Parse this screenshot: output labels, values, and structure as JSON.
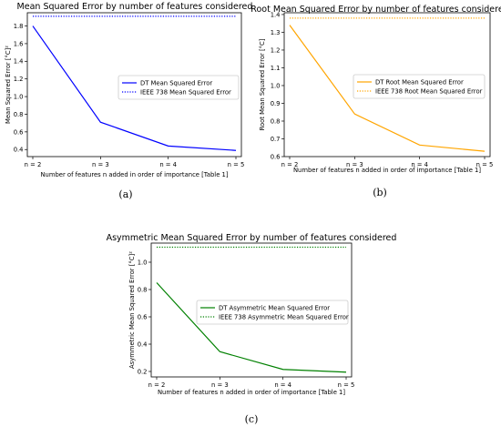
{
  "chart_data": [
    {
      "type": "line",
      "title": "Mean Squared Error by number of features considered",
      "xlabel": "Number of features n added in order of importance [Table 1]",
      "ylabel": "Mean Squared Error [°C]²",
      "categories": [
        "n = 2",
        "n = 3",
        "n = 4",
        "n = 5"
      ],
      "ylim": [
        0.32,
        1.95
      ],
      "yticks": [
        0.4,
        0.6,
        0.8,
        1.0,
        1.2,
        1.4,
        1.6,
        1.8
      ],
      "ytick_labels": [
        "0.4",
        "0.6",
        "0.8",
        "1.0",
        "1.2",
        "1.4",
        "1.6",
        "1.8"
      ],
      "legend_position": "center-right",
      "caption": "(a)",
      "series": [
        {
          "name": "DT Mean Squared Error",
          "values": [
            1.8,
            0.71,
            0.44,
            0.39
          ],
          "color": "#0000ff",
          "style": "solid"
        },
        {
          "name": "IEEE 738 Mean Squared Error",
          "values": [
            1.91,
            1.91,
            1.91,
            1.91
          ],
          "color": "#0000ff",
          "style": "dotted"
        }
      ]
    },
    {
      "type": "line",
      "title": "Root Mean Squared Error by number of features considered",
      "xlabel": "Number of features n added in order of importance [Table 1]",
      "ylabel": "Root Mean Squared Error [°C]",
      "categories": [
        "n = 2",
        "n = 3",
        "n = 4",
        "n = 5"
      ],
      "ylim": [
        0.6,
        1.41
      ],
      "yticks": [
        0.6,
        0.7,
        0.8,
        0.9,
        1.0,
        1.1,
        1.2,
        1.3,
        1.4
      ],
      "ytick_labels": [
        "0.6",
        "0.7",
        "0.8",
        "0.9",
        "1.0",
        "1.1",
        "1.2",
        "1.3",
        "1.4"
      ],
      "legend_position": "upper-right",
      "caption": "(b)",
      "series": [
        {
          "name": "DT Root Mean Squared Error",
          "values": [
            1.34,
            0.84,
            0.665,
            0.63
          ],
          "color": "#ffa500",
          "style": "solid"
        },
        {
          "name": "IEEE 738 Root Mean Squared Error",
          "values": [
            1.38,
            1.38,
            1.38,
            1.38
          ],
          "color": "#ffa500",
          "style": "dotted"
        }
      ]
    },
    {
      "type": "line",
      "title": "Asymmetric Mean Squared Error by number of features considered",
      "xlabel": "Number of features n added in order of importance [Table 1]",
      "ylabel": "Asymmetric Mean Squared Error [°C]²",
      "categories": [
        "n = 2",
        "n = 3",
        "n = 4",
        "n = 5"
      ],
      "ylim": [
        0.16,
        1.14
      ],
      "yticks": [
        0.2,
        0.4,
        0.6,
        0.8,
        1.0
      ],
      "ytick_labels": [
        "0.2",
        "0.4",
        "0.6",
        "0.8",
        "1.0"
      ],
      "legend_position": "center-right",
      "caption": "(c)",
      "series": [
        {
          "name": "DT Asymmetric Mean Squared Error",
          "values": [
            0.85,
            0.345,
            0.215,
            0.195
          ],
          "color": "#008000",
          "style": "solid"
        },
        {
          "name": "IEEE 738 Asymmetric Mean Squared Error",
          "values": [
            1.11,
            1.11,
            1.11,
            1.11
          ],
          "color": "#008000",
          "style": "dotted"
        }
      ]
    }
  ]
}
